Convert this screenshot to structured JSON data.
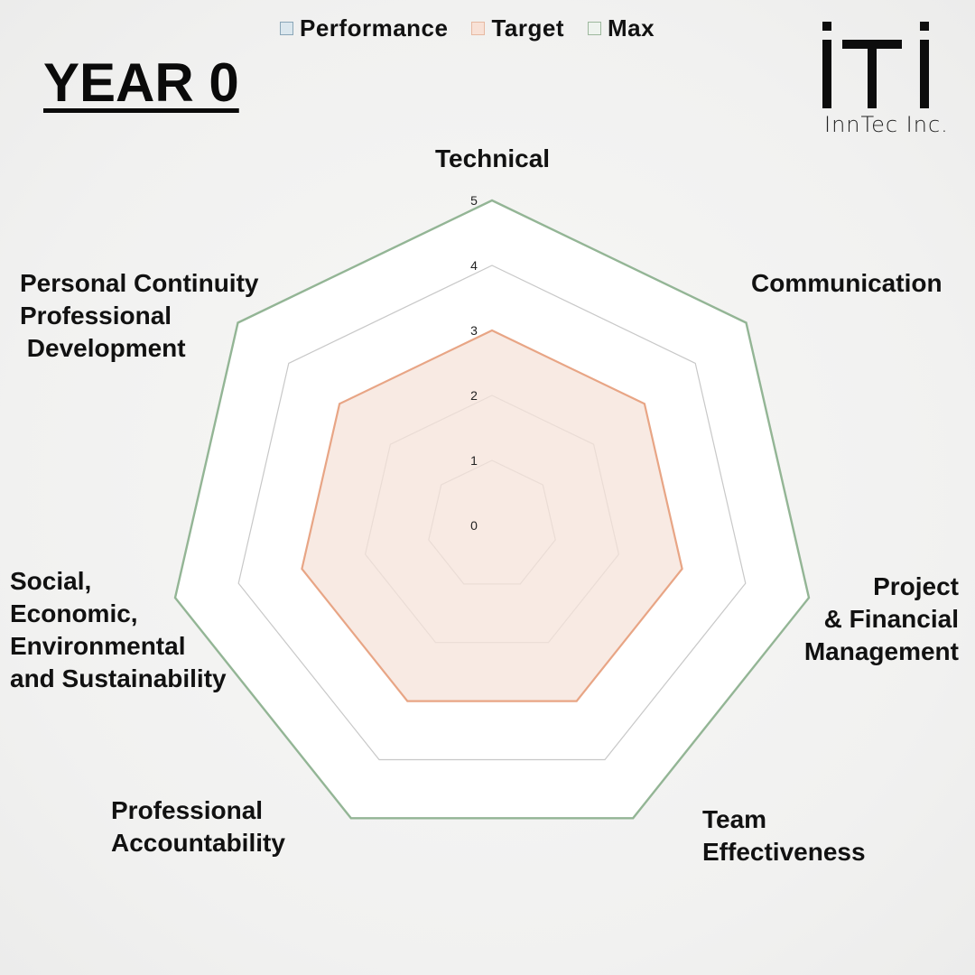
{
  "page": {
    "title": "YEAR 0",
    "logo": {
      "mark": "ITI",
      "name": "InnTec Inc."
    }
  },
  "legend": [
    {
      "label": "Performance",
      "swatch_fill": "#dbe7ee",
      "swatch_border": "#8aa6b8"
    },
    {
      "label": "Target",
      "swatch_fill": "#f8e1d6",
      "swatch_border": "#e7b9a2"
    },
    {
      "label": "Max",
      "swatch_fill": "#eef3ee",
      "swatch_border": "#9db89d"
    }
  ],
  "colors": {
    "target_line": "#e8a585",
    "target_fill": "#f6e3da",
    "max_line": "#93b595",
    "grid_line": "#c8c8c8",
    "plot_area": "#ffffff"
  },
  "chart_data": {
    "type": "radar",
    "categories": [
      "Technical",
      "Communication",
      "Project\n& Financial\nManagement",
      "Team\nEffectiveness",
      "Professional\nAccountability",
      "Social,\nEconomic,\nEnvironmental\nand Sustainability",
      "Personal Continuity\nProfessional\n Development"
    ],
    "series": [
      {
        "name": "Performance",
        "values": [
          0,
          0,
          0,
          0,
          0,
          0,
          0
        ]
      },
      {
        "name": "Target",
        "values": [
          3,
          3,
          3,
          3,
          3,
          3,
          3
        ]
      },
      {
        "name": "Max",
        "values": [
          5,
          5,
          5,
          5,
          5,
          5,
          5
        ]
      }
    ],
    "ticks": [
      "0",
      "1",
      "2",
      "3",
      "4",
      "5"
    ],
    "rlim": [
      0,
      5
    ],
    "grid": true,
    "legend_position": "top"
  }
}
